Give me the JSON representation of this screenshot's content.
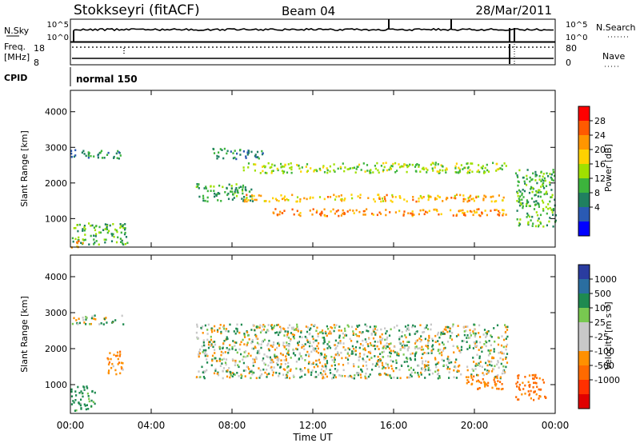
{
  "header": {
    "station": "Stokkseyri (fitACF)",
    "beam": "Beam 04",
    "date": "28/Mar/2011"
  },
  "strip": {
    "nsky_label": "N.Sky",
    "nsky_ticks": [
      "10^5",
      "10^0"
    ],
    "nsearch_label": "N.Search",
    "nsearch_ticks": [
      "10^5",
      "10^0"
    ],
    "freq_label": "Freq.",
    "freq_unit": "[MHz]",
    "freq_ticks": [
      "18",
      "8"
    ],
    "nave_label": "Nave",
    "nave_ticks": [
      "80",
      "0"
    ],
    "cpid_label": "CPID",
    "cpid_value": "normal 150"
  },
  "axes": {
    "y_label": "Slant Range [km]",
    "x_label": "Time UT",
    "x_ticks": [
      "00:00",
      "04:00",
      "08:00",
      "12:00",
      "16:00",
      "20:00",
      "00:00"
    ],
    "y_ticks": [
      "1000",
      "2000",
      "3000",
      "4000"
    ]
  },
  "power_bar": {
    "label": "Power [dB]",
    "ticks": [
      "28",
      "24",
      "20",
      "16",
      "12",
      "8",
      "4"
    ],
    "colors": [
      "#ff0000",
      "#ff5a00",
      "#ff9600",
      "#ffd200",
      "#a0e000",
      "#3cb43c",
      "#208060",
      "#2a5ab4",
      "#0000ff"
    ]
  },
  "velocity_bar": {
    "label": "Velocity [m s⁻¹]",
    "ticks": [
      "1000",
      "500",
      "100",
      "25",
      "-25",
      "-100",
      "-500",
      "-1000"
    ],
    "colors": [
      "#2a3ca0",
      "#2a6ea0",
      "#1e8a50",
      "#78c850",
      "#c8c8c8",
      "#c8c8c8",
      "#ff9000",
      "#ff6a00",
      "#ff3000",
      "#e00000"
    ]
  },
  "chart_data": [
    {
      "type": "heatmap",
      "title": "Power",
      "xlabel": "Time UT",
      "ylabel": "Slant Range [km]",
      "xlim": [
        0,
        24
      ],
      "ylim": [
        200,
        4600
      ],
      "colorbar": {
        "label": "Power [dB]",
        "ticks": [
          4,
          8,
          12,
          16,
          20,
          24,
          28
        ]
      },
      "bands": [
        {
          "t": [
            0.0,
            2.6
          ],
          "range": [
            2700,
            2950
          ],
          "value": 6
        },
        {
          "t": [
            0.0,
            2.8
          ],
          "range": [
            300,
            900
          ],
          "value": 10
        },
        {
          "t": [
            0.0,
            0.6
          ],
          "range": [
            200,
            400
          ],
          "value": 22
        },
        {
          "t": [
            6.2,
            9.0
          ],
          "range": [
            1500,
            2000
          ],
          "value": 9
        },
        {
          "t": [
            7.0,
            9.5
          ],
          "range": [
            2700,
            3000
          ],
          "value": 6
        },
        {
          "t": [
            8.5,
            21.6
          ],
          "range": [
            1500,
            1700
          ],
          "value": 20
        },
        {
          "t": [
            10.0,
            21.6
          ],
          "range": [
            1100,
            1300
          ],
          "value": 23
        },
        {
          "t": [
            8.5,
            21.6
          ],
          "range": [
            2300,
            2600
          ],
          "value": 13
        },
        {
          "t": [
            22.0,
            24.0
          ],
          "range": [
            800,
            2400
          ],
          "value": 10
        }
      ]
    },
    {
      "type": "heatmap",
      "title": "Velocity",
      "xlabel": "Time UT",
      "ylabel": "Slant Range [km]",
      "xlim": [
        0,
        24
      ],
      "ylim": [
        200,
        4600
      ],
      "colorbar": {
        "label": "Velocity [m s⁻¹]",
        "ticks": [
          1000,
          500,
          100,
          25,
          -25,
          -100,
          -500,
          -1000
        ]
      },
      "bands": [
        {
          "t": [
            0.0,
            2.6
          ],
          "range": [
            2700,
            2950
          ],
          "value": 0
        },
        {
          "t": [
            0.0,
            1.2
          ],
          "range": [
            300,
            1000
          ],
          "value": 150
        },
        {
          "t": [
            1.8,
            2.6
          ],
          "range": [
            1300,
            2000
          ],
          "value": -200
        },
        {
          "t": [
            6.2,
            21.6
          ],
          "range": [
            1200,
            2700
          ],
          "value": 0
        },
        {
          "t": [
            19.5,
            21.5
          ],
          "range": [
            900,
            1300
          ],
          "value": -300
        },
        {
          "t": [
            22.0,
            23.5
          ],
          "range": [
            600,
            1300
          ],
          "value": -400
        }
      ]
    }
  ]
}
